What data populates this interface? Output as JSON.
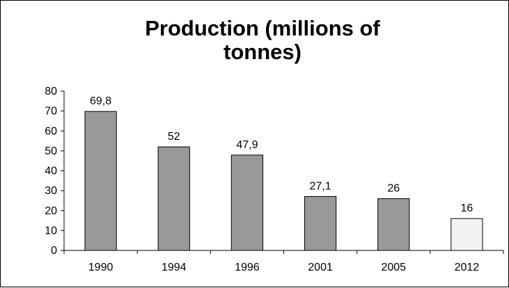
{
  "chart_data": {
    "type": "bar",
    "title_lines": [
      "Production  (millions of",
      "tonnes)"
    ],
    "xlabel": "",
    "ylabel": "",
    "categories": [
      "1990",
      "1994",
      "1996",
      "2001",
      "2005",
      "2012"
    ],
    "values": [
      69.8,
      52,
      47.9,
      27.1,
      26,
      16
    ],
    "data_labels": [
      "69,8",
      "52",
      "47,9",
      "27,1",
      "26",
      "16"
    ],
    "bar_colors": [
      "#999999",
      "#999999",
      "#999999",
      "#999999",
      "#999999",
      "#f2f2f2"
    ],
    "ylim": [
      0,
      80
    ],
    "yticks": [
      0,
      10,
      20,
      30,
      40,
      50,
      60,
      70,
      80
    ],
    "grid": false,
    "legend": "none"
  }
}
